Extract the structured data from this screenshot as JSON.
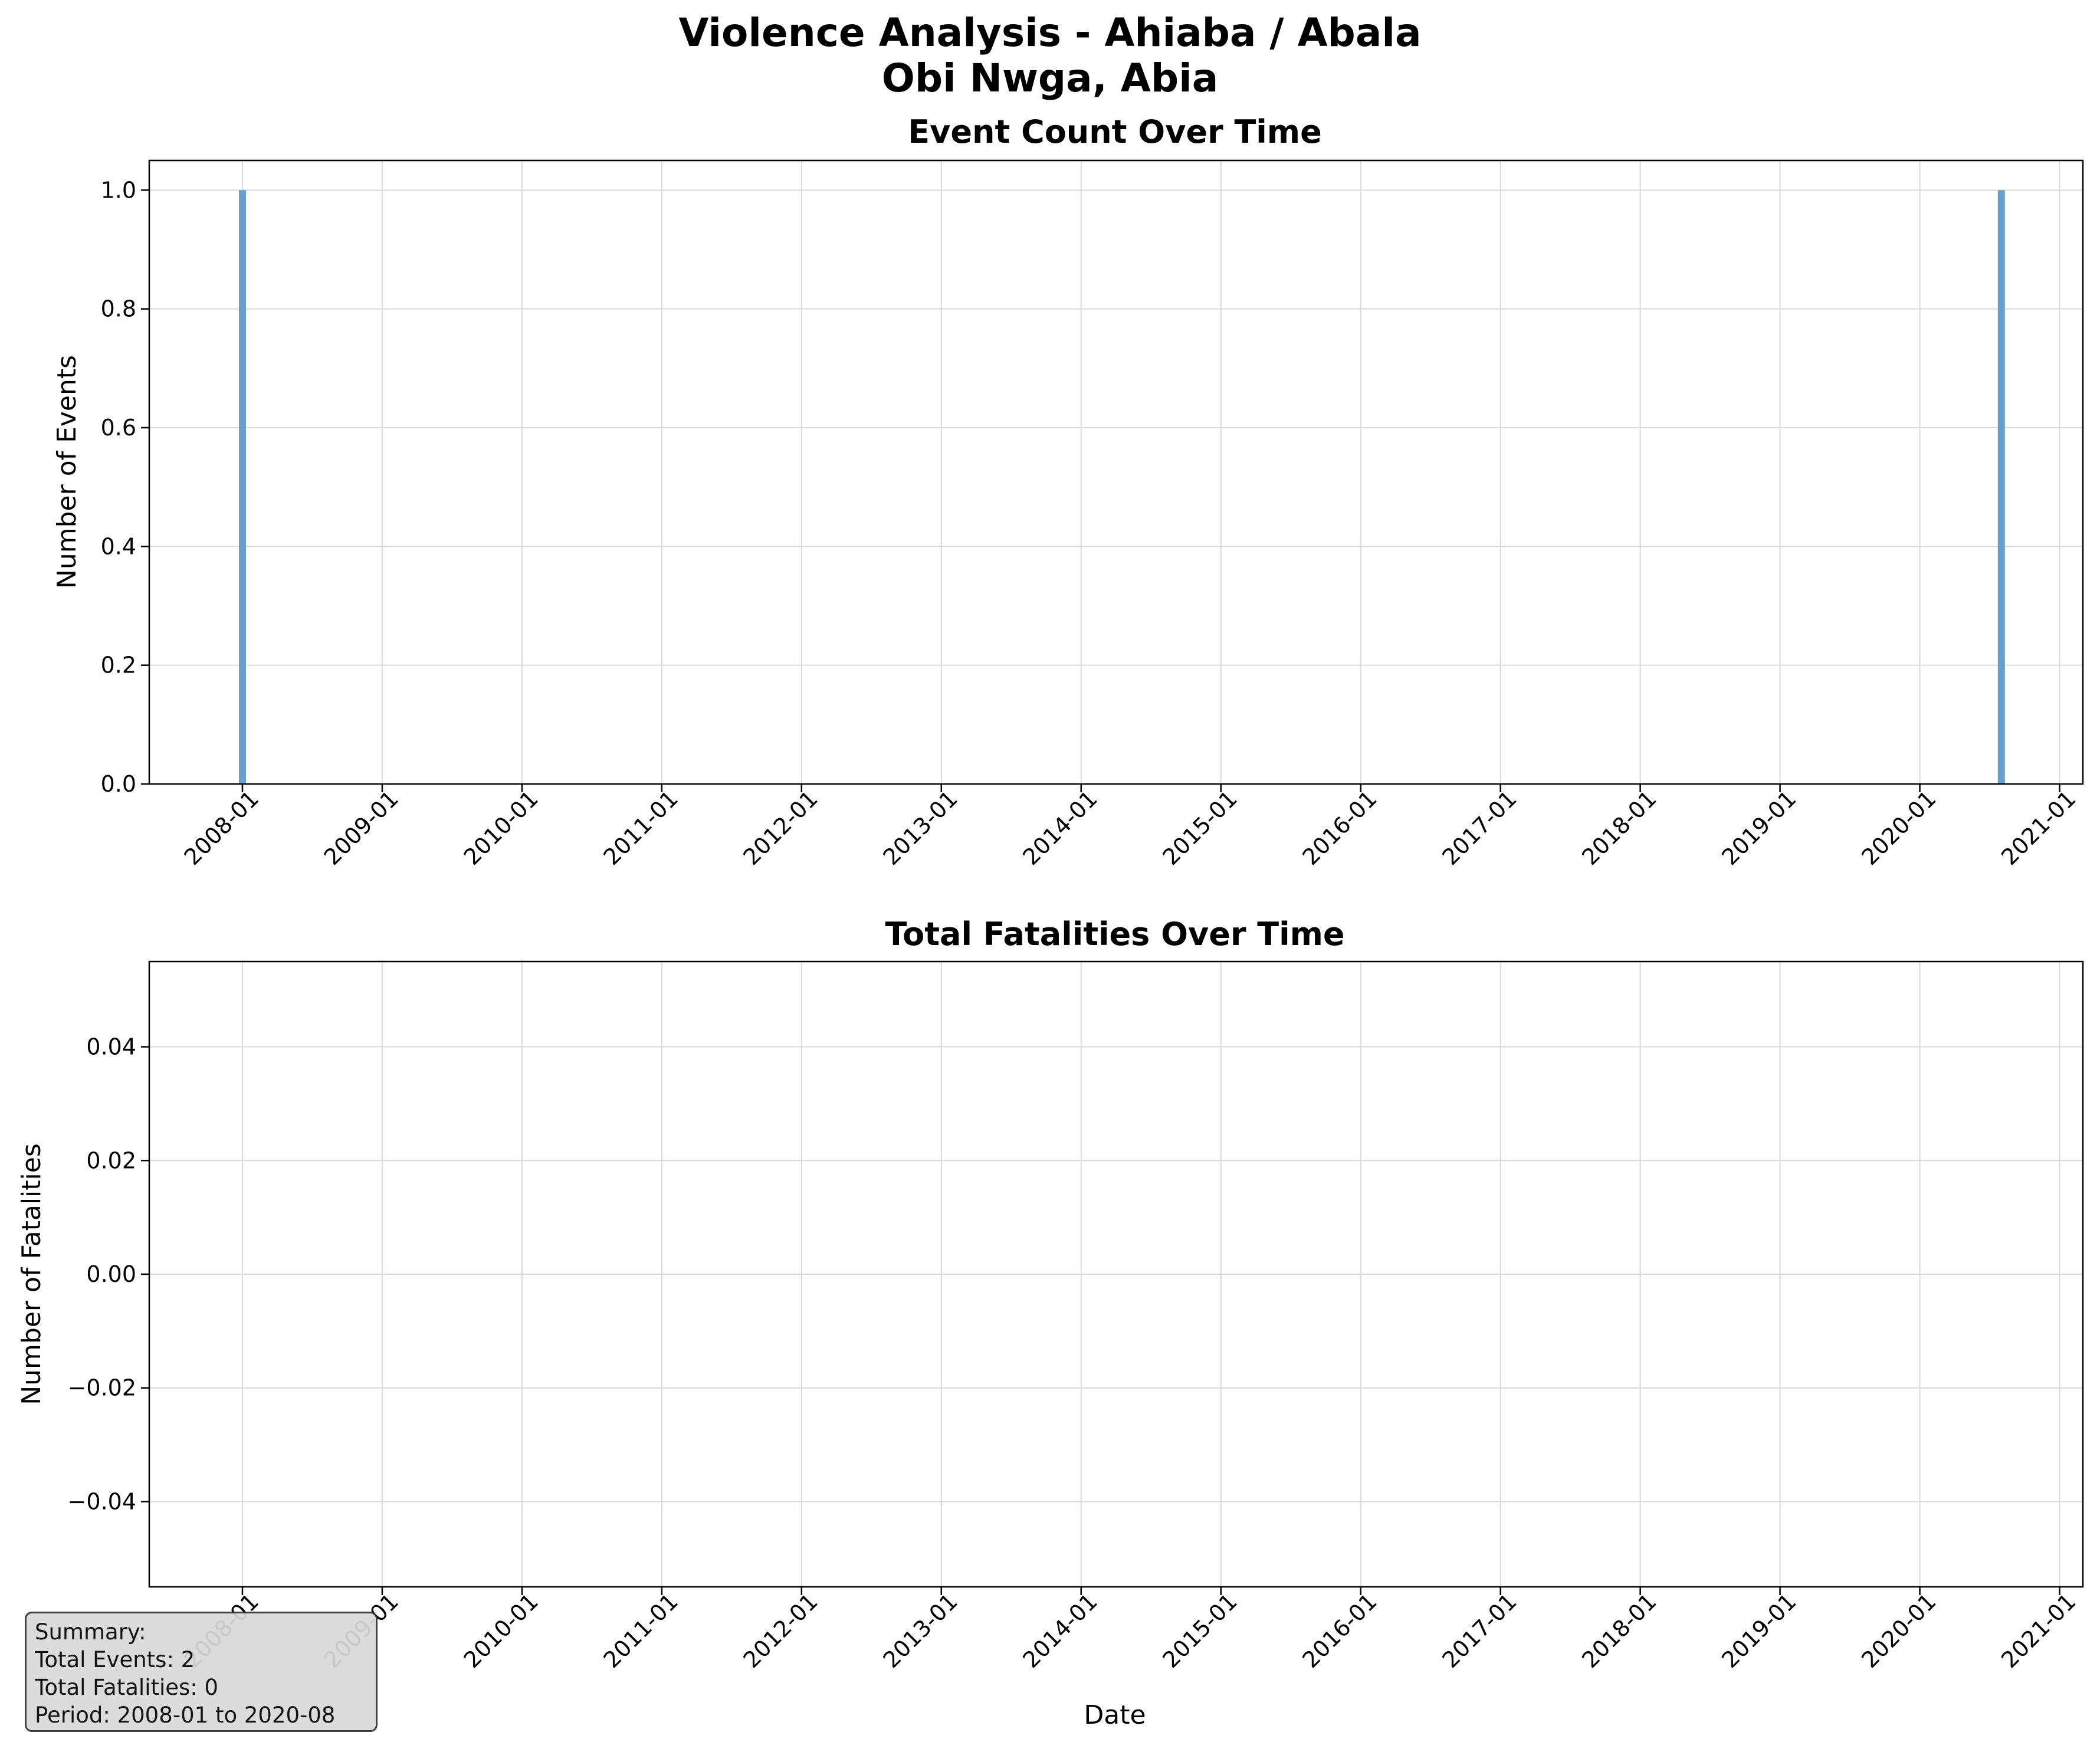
{
  "suptitle": [
    "Violence Analysis - Ahiaba / Abala",
    "Obi Nwga, Abia"
  ],
  "colors": {
    "bar": "#6a9fc9",
    "grid": "#d9d9d9",
    "summary_bg": "#d9d9d9"
  },
  "chart_data": [
    {
      "type": "bar",
      "title": "Event Count Over Time",
      "xlabel": "",
      "ylabel": "Number of Events",
      "x": [
        "2008-01",
        "2020-08"
      ],
      "values": [
        1,
        1
      ],
      "xlim": [
        "2007-05",
        "2021-03"
      ],
      "ylim": [
        0,
        1.05
      ],
      "xticks": [
        "2008-01",
        "2009-01",
        "2010-01",
        "2011-01",
        "2012-01",
        "2013-01",
        "2014-01",
        "2015-01",
        "2016-01",
        "2017-01",
        "2018-01",
        "2019-01",
        "2020-01",
        "2021-01"
      ],
      "yticks": [
        "0.0",
        "0.2",
        "0.4",
        "0.6",
        "0.8",
        "1.0"
      ],
      "grid": true
    },
    {
      "type": "line",
      "title": "Total Fatalities Over Time",
      "xlabel": "Date",
      "ylabel": "Number of Fatalities",
      "x": [
        "2008-01",
        "2020-08"
      ],
      "values": [
        0,
        0
      ],
      "xlim": [
        "2007-05",
        "2021-03"
      ],
      "ylim": [
        -0.055,
        0.055
      ],
      "xticks": [
        "2008-01",
        "2009-01",
        "2010-01",
        "2011-01",
        "2012-01",
        "2013-01",
        "2014-01",
        "2015-01",
        "2016-01",
        "2017-01",
        "2018-01",
        "2019-01",
        "2020-01",
        "2021-01"
      ],
      "yticks": [
        "−0.04",
        "−0.02",
        "0.00",
        "0.02",
        "0.04"
      ],
      "grid": true
    }
  ],
  "summary": {
    "heading": "Summary:",
    "total_events": "Total Events: 2",
    "total_fatalities": "Total Fatalities: 0",
    "period": "Period: 2008-01 to 2020-08"
  }
}
